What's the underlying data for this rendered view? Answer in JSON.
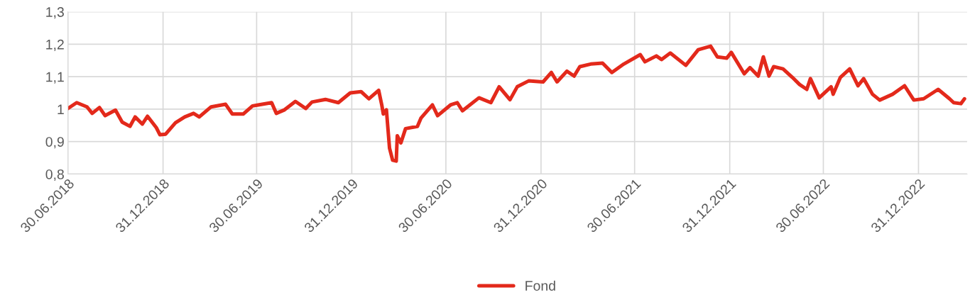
{
  "chart_data": {
    "type": "line",
    "x": [
      "2018-06-30",
      "2018-07-17",
      "2018-08-06",
      "2018-08-16",
      "2018-08-30",
      "2018-09-10",
      "2018-09-30",
      "2018-10-13",
      "2018-10-28",
      "2018-11-07",
      "2018-11-21",
      "2018-12-01",
      "2018-12-18",
      "2018-12-25",
      "2019-01-05",
      "2019-01-24",
      "2019-02-11",
      "2019-02-28",
      "2019-03-11",
      "2019-04-03",
      "2019-05-01",
      "2019-05-14",
      "2019-06-04",
      "2019-06-22",
      "2019-07-03",
      "2019-07-29",
      "2019-08-07",
      "2019-08-23",
      "2019-09-13",
      "2019-10-03",
      "2019-10-15",
      "2019-11-10",
      "2019-12-05",
      "2019-12-28",
      "2020-01-18",
      "2020-02-02",
      "2020-02-21",
      "2020-02-27",
      "2020-03-01",
      "2020-03-07",
      "2020-03-13",
      "2020-03-19",
      "2020-03-26",
      "2020-03-28",
      "2020-04-04",
      "2020-04-13",
      "2020-05-06",
      "2020-05-13",
      "2020-06-04",
      "2020-06-14",
      "2020-07-09",
      "2020-07-22",
      "2020-08-01",
      "2020-09-02",
      "2020-09-25",
      "2020-10-11",
      "2020-11-01",
      "2020-11-15",
      "2020-12-07",
      "2021-01-04",
      "2021-01-20",
      "2021-01-31",
      "2021-02-19",
      "2021-03-05",
      "2021-03-16",
      "2021-04-06",
      "2021-04-29",
      "2021-05-17",
      "2021-06-09",
      "2021-07-11",
      "2021-07-20",
      "2021-08-11",
      "2021-08-21",
      "2021-09-07",
      "2021-10-07",
      "2021-10-31",
      "2021-11-24",
      "2021-12-07",
      "2021-12-25",
      "2022-01-03",
      "2022-01-28",
      "2022-02-08",
      "2022-02-24",
      "2022-03-06",
      "2022-03-17",
      "2022-03-26",
      "2022-04-13",
      "2022-05-01",
      "2022-05-15",
      "2022-05-29",
      "2022-06-05",
      "2022-06-22",
      "2022-07-15",
      "2022-07-19",
      "2022-08-02",
      "2022-08-20",
      "2022-09-05",
      "2022-09-16",
      "2022-10-03",
      "2022-10-17",
      "2022-11-11",
      "2022-12-04",
      "2022-12-22",
      "2023-01-10",
      "2023-02-07",
      "2023-03-01",
      "2023-03-09",
      "2023-03-23",
      "2023-03-30"
    ],
    "series": [
      {
        "name": "Fond",
        "color": "#e3291b",
        "values": [
          1.002,
          1.02,
          1.007,
          0.987,
          1.005,
          0.98,
          0.997,
          0.96,
          0.947,
          0.976,
          0.954,
          0.978,
          0.943,
          0.921,
          0.923,
          0.958,
          0.976,
          0.987,
          0.976,
          1.007,
          1.015,
          0.985,
          0.985,
          1.01,
          1.013,
          1.02,
          0.987,
          0.998,
          1.024,
          1.002,
          1.022,
          1.03,
          1.02,
          1.05,
          1.054,
          1.032,
          1.058,
          1.013,
          0.985,
          0.998,
          0.88,
          0.843,
          0.84,
          0.918,
          0.896,
          0.94,
          0.947,
          0.973,
          1.013,
          0.98,
          1.013,
          1.02,
          0.995,
          1.035,
          1.02,
          1.069,
          1.029,
          1.069,
          1.087,
          1.084,
          1.113,
          1.084,
          1.117,
          1.102,
          1.131,
          1.139,
          1.142,
          1.113,
          1.139,
          1.168,
          1.146,
          1.164,
          1.153,
          1.173,
          1.135,
          1.183,
          1.194,
          1.161,
          1.157,
          1.175,
          1.109,
          1.128,
          1.102,
          1.161,
          1.102,
          1.131,
          1.124,
          1.098,
          1.076,
          1.061,
          1.094,
          1.035,
          1.069,
          1.046,
          1.098,
          1.124,
          1.072,
          1.094,
          1.046,
          1.028,
          1.046,
          1.072,
          1.028,
          1.032,
          1.061,
          1.032,
          1.02,
          1.017,
          1.032
        ]
      }
    ],
    "xlim": [
      "2018-06-30",
      "2023-04-04"
    ],
    "xticks": [
      {
        "value": "2018-06-30",
        "label": "30.06.2018"
      },
      {
        "value": "2018-12-31",
        "label": "31.12.2018"
      },
      {
        "value": "2019-06-30",
        "label": "30.06.2019"
      },
      {
        "value": "2019-12-31",
        "label": "31.12.2019"
      },
      {
        "value": "2020-06-30",
        "label": "30.06.2020"
      },
      {
        "value": "2020-12-31",
        "label": "31.12.2020"
      },
      {
        "value": "2021-06-30",
        "label": "30.06.2021"
      },
      {
        "value": "2021-12-31",
        "label": "31.12.2021"
      },
      {
        "value": "2022-06-30",
        "label": "30.06.2022"
      },
      {
        "value": "2022-12-31",
        "label": "31.12.2022"
      }
    ],
    "ylim": [
      0.8,
      1.3
    ],
    "yticks": [
      {
        "value": 0.8,
        "label": "0,8"
      },
      {
        "value": 0.9,
        "label": "0,9"
      },
      1,
      {
        "value": 1.1,
        "label": "1,1"
      },
      {
        "value": 1.2,
        "label": "1,2"
      },
      {
        "value": 1.3,
        "label": "1,3"
      }
    ],
    "grid": true,
    "legend": "bottom",
    "marker": "none",
    "line_style": "solid"
  }
}
